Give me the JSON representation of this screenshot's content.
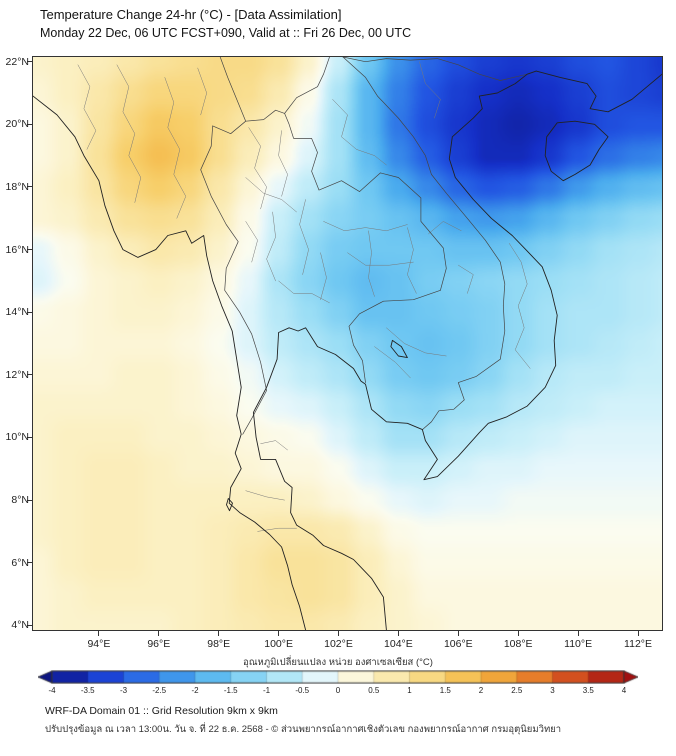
{
  "header": {
    "title": "Temperature Change 24-hr (°C) - [Data Assimilation]",
    "subtitle": "Monday 22 Dec, 06 UTC FCST+090, Valid at :: Fri 26 Dec, 00 UTC"
  },
  "map": {
    "x_tick_labels": [
      "94°E",
      "96°E",
      "98°E",
      "100°E",
      "102°E",
      "104°E",
      "106°E",
      "108°E",
      "110°E",
      "112°E"
    ],
    "y_tick_labels": [
      "22°N",
      "20°N",
      "18°N",
      "16°N",
      "14°N",
      "12°N",
      "10°N",
      "8°N",
      "6°N",
      "4°N"
    ]
  },
  "colorbar": {
    "title": "อุณหภูมิเปลี่ยนแปลง หน่วย องศาเซลเซียส (°C)",
    "tick_labels": [
      "-4",
      "-3.5",
      "-3",
      "-2.5",
      "-2",
      "-1.5",
      "-1",
      "-0.5",
      "0",
      "0.5",
      "1",
      "1.5",
      "2",
      "2.5",
      "3",
      "3.5",
      "4"
    ],
    "stops": [
      {
        "v": -4.0,
        "c": "#0d1580"
      },
      {
        "v": -3.5,
        "c": "#1530c8"
      },
      {
        "v": -3.0,
        "c": "#2255e2"
      },
      {
        "v": -2.5,
        "c": "#3380e8"
      },
      {
        "v": -2.0,
        "c": "#4aabee"
      },
      {
        "v": -1.5,
        "c": "#70c8f2"
      },
      {
        "v": -1.0,
        "c": "#9bdef5"
      },
      {
        "v": -0.5,
        "c": "#c9eff9"
      },
      {
        "v": -0.2,
        "c": "#e8f7fb"
      },
      {
        "v": 0.0,
        "c": "#fbfcf0"
      },
      {
        "v": 0.2,
        "c": "#fcf8e0"
      },
      {
        "v": 0.5,
        "c": "#fbf0c2"
      },
      {
        "v": 1.0,
        "c": "#f9e29a"
      },
      {
        "v": 1.5,
        "c": "#f7cf6a"
      },
      {
        "v": 2.0,
        "c": "#f3b544"
      },
      {
        "v": 2.5,
        "c": "#ec9430"
      },
      {
        "v": 3.0,
        "c": "#df6524"
      },
      {
        "v": 3.5,
        "c": "#c73b1a"
      },
      {
        "v": 4.0,
        "c": "#a01010"
      }
    ]
  },
  "footer": {
    "line1": "WRF-DA Domain 01 :: Grid Resolution 9km x 9km",
    "line2": "ปรับปรุงข้อมูล ณ เวลา 13:00น. วัน จ. ที่ 22 ธ.ค. 2568 - © ส่วนพยากรณ์อากาศเชิงตัวเลข กองพยากรณ์อากาศ กรมอุตุนิยมวิทยา"
  },
  "colors": {
    "coast": "#222222",
    "border": "#454545",
    "province": "#787878",
    "frame": "#333333"
  },
  "chart_data": {
    "type": "heatmap",
    "title": "Temperature Change 24-hr (°C) - [Data Assimilation]",
    "units": "°C",
    "x_name": "longitude_deg_east",
    "y_name": "latitude_deg_north",
    "x_ticks": [
      94,
      96,
      98,
      100,
      102,
      104,
      106,
      108,
      110,
      112
    ],
    "y_ticks": [
      22,
      20,
      18,
      16,
      14,
      12,
      10,
      8,
      6,
      4
    ],
    "xlim": [
      91.8,
      112.8
    ],
    "ylim": [
      3.85,
      22.15
    ],
    "value_range": [
      -4,
      4
    ],
    "grid_lon": [
      92,
      93,
      94,
      95,
      96,
      97,
      98,
      99,
      100,
      101,
      102,
      103,
      104,
      105,
      106,
      107,
      108,
      109,
      110,
      111,
      112,
      113
    ],
    "grid_lat": [
      22,
      21,
      20,
      19,
      18,
      17,
      16,
      15,
      14,
      13,
      12,
      11,
      10,
      9,
      8,
      7,
      6,
      5,
      4
    ],
    "values_c": [
      [
        0.4,
        0.5,
        0.6,
        0.8,
        1.0,
        1.1,
        1.2,
        1.2,
        1.0,
        0.4,
        -0.5,
        -1.5,
        -2.3,
        -2.8,
        -3.1,
        -3.3,
        -3.4,
        -3.3,
        -3.1,
        -3.0,
        -3.2,
        -3.4
      ],
      [
        0.3,
        0.5,
        0.8,
        1.1,
        1.3,
        1.3,
        1.2,
        1.1,
        0.7,
        0.1,
        -0.8,
        -1.8,
        -2.5,
        -3.0,
        -3.3,
        -3.5,
        -3.6,
        -3.5,
        -3.3,
        -3.1,
        -3.2,
        -3.3
      ],
      [
        0.2,
        0.4,
        0.9,
        1.3,
        1.6,
        1.5,
        1.1,
        0.8,
        0.4,
        -0.1,
        -0.9,
        -1.8,
        -2.6,
        -3.1,
        -3.4,
        -3.6,
        -3.7,
        -3.6,
        -3.4,
        -3.1,
        -3.0,
        -3.0
      ],
      [
        0.2,
        0.4,
        1.0,
        1.5,
        1.8,
        1.6,
        1.1,
        0.6,
        0.2,
        -0.3,
        -0.9,
        -1.7,
        -2.4,
        -2.9,
        -3.3,
        -3.6,
        -3.6,
        -3.4,
        -3.0,
        -2.7,
        -2.5,
        -2.4
      ],
      [
        0.3,
        0.5,
        0.9,
        1.3,
        1.5,
        1.3,
        0.8,
        0.3,
        -0.2,
        -0.6,
        -1.0,
        -1.5,
        -2.0,
        -2.4,
        -2.8,
        -3.0,
        -2.9,
        -2.6,
        -2.2,
        -1.9,
        -1.7,
        -1.6
      ],
      [
        0.3,
        0.4,
        0.7,
        1.0,
        1.1,
        1.0,
        0.6,
        0.1,
        -0.5,
        -0.9,
        -1.2,
        -1.4,
        -1.6,
        -1.8,
        -2.1,
        -2.2,
        -2.1,
        -1.8,
        -1.5,
        -1.3,
        -1.1,
        -1.0
      ],
      [
        -0.2,
        0.1,
        0.4,
        0.6,
        0.8,
        0.7,
        0.4,
        0.0,
        -0.6,
        -1.1,
        -1.4,
        -1.5,
        -1.5,
        -1.5,
        -1.6,
        -1.6,
        -1.5,
        -1.3,
        -1.1,
        -0.9,
        -0.8,
        -0.7
      ],
      [
        -0.3,
        0.0,
        0.3,
        0.4,
        0.5,
        0.4,
        0.2,
        -0.2,
        -0.8,
        -1.2,
        -1.5,
        -1.7,
        -1.6,
        -1.4,
        -1.3,
        -1.2,
        -1.1,
        -1.0,
        -0.9,
        -0.8,
        -0.7,
        -0.6
      ],
      [
        0.1,
        0.2,
        0.3,
        0.4,
        0.4,
        0.3,
        0.1,
        -0.3,
        -0.7,
        -1.0,
        -1.3,
        -1.6,
        -1.6,
        -1.5,
        -1.4,
        -1.3,
        -1.1,
        -0.9,
        -0.8,
        -0.8,
        -0.7,
        -0.6
      ],
      [
        0.2,
        0.2,
        0.3,
        0.3,
        0.3,
        0.2,
        0.0,
        -0.3,
        -0.6,
        -0.8,
        -1.0,
        -1.3,
        -1.5,
        -1.6,
        -1.5,
        -1.3,
        -1.1,
        -0.9,
        -0.8,
        -0.7,
        -0.6,
        -0.5
      ],
      [
        0.3,
        0.3,
        0.3,
        0.4,
        0.4,
        0.3,
        0.1,
        -0.1,
        -0.4,
        -0.6,
        -0.8,
        -1.1,
        -1.4,
        -1.5,
        -1.4,
        -1.2,
        -0.9,
        -0.7,
        -0.6,
        -0.6,
        -0.5,
        -0.5
      ],
      [
        0.4,
        0.4,
        0.4,
        0.4,
        0.4,
        0.3,
        0.2,
        0.0,
        -0.2,
        -0.3,
        -0.5,
        -0.8,
        -1.1,
        -1.2,
        -1.0,
        -0.9,
        -0.7,
        -0.6,
        -0.5,
        -0.4,
        -0.4,
        -0.4
      ],
      [
        0.4,
        0.5,
        0.5,
        0.5,
        0.4,
        0.4,
        0.3,
        0.2,
        0.1,
        0.0,
        -0.3,
        -0.6,
        -0.9,
        -0.9,
        -0.7,
        -0.6,
        -0.5,
        -0.4,
        -0.3,
        -0.3,
        -0.3,
        -0.3
      ],
      [
        0.4,
        0.5,
        0.6,
        0.6,
        0.5,
        0.4,
        0.4,
        0.3,
        0.2,
        0.2,
        0.0,
        -0.3,
        -0.5,
        -0.5,
        -0.4,
        -0.3,
        -0.3,
        -0.2,
        -0.2,
        -0.2,
        -0.2,
        -0.2
      ],
      [
        0.4,
        0.5,
        0.6,
        0.6,
        0.5,
        0.5,
        0.5,
        0.5,
        0.5,
        0.4,
        0.2,
        0.0,
        -0.2,
        -0.3,
        -0.2,
        -0.2,
        -0.1,
        -0.1,
        -0.1,
        -0.1,
        -0.1,
        -0.1
      ],
      [
        0.4,
        0.5,
        0.6,
        0.6,
        0.5,
        0.5,
        0.6,
        0.7,
        0.8,
        0.8,
        0.7,
        0.4,
        0.1,
        0.0,
        0.0,
        0.0,
        0.0,
        0.0,
        0.0,
        0.0,
        0.0,
        0.0
      ],
      [
        0.3,
        0.5,
        0.6,
        0.6,
        0.5,
        0.5,
        0.6,
        0.8,
        1.0,
        1.0,
        0.9,
        0.6,
        0.3,
        0.1,
        0.1,
        0.1,
        0.1,
        0.1,
        0.1,
        0.1,
        0.1,
        0.1
      ],
      [
        0.3,
        0.4,
        0.5,
        0.5,
        0.5,
        0.5,
        0.6,
        0.8,
        0.9,
        1.0,
        0.9,
        0.6,
        0.4,
        0.2,
        0.2,
        0.2,
        0.2,
        0.2,
        0.2,
        0.2,
        0.2,
        0.2
      ],
      [
        0.3,
        0.4,
        0.4,
        0.4,
        0.4,
        0.5,
        0.6,
        0.7,
        0.8,
        0.8,
        0.7,
        0.5,
        0.4,
        0.3,
        0.2,
        0.2,
        0.2,
        0.2,
        0.2,
        0.2,
        0.2,
        0.2
      ]
    ]
  }
}
